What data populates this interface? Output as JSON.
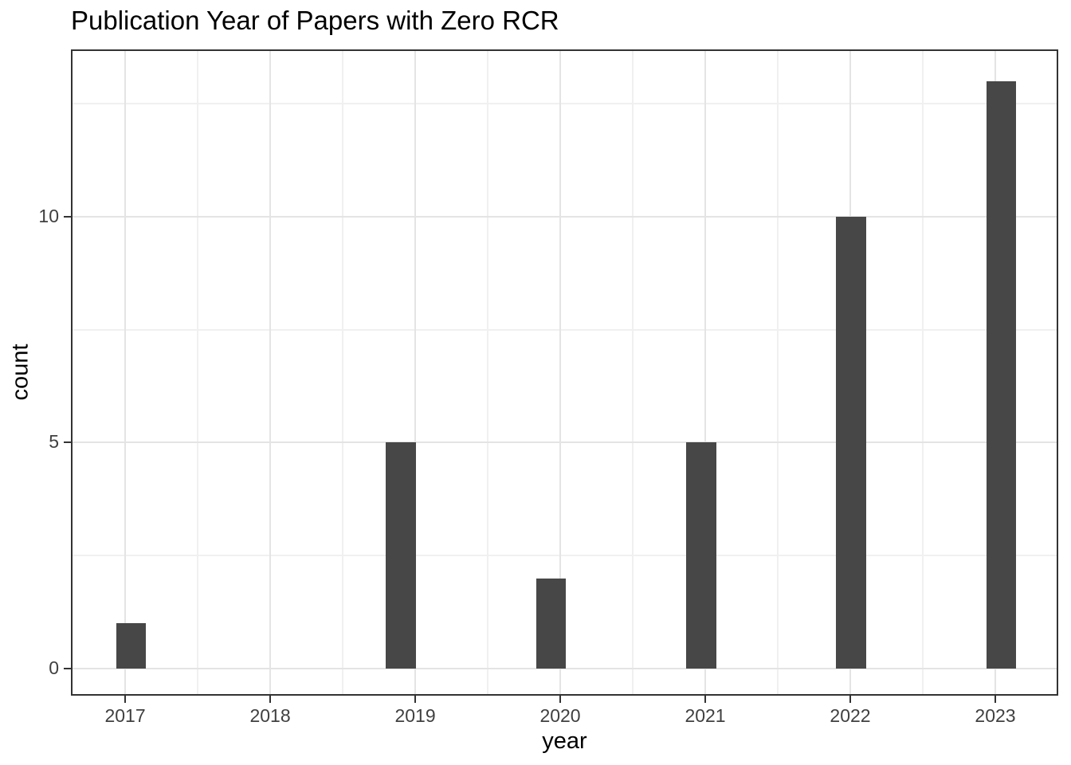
{
  "chart_data": {
    "type": "bar",
    "subtype": "histogram",
    "title": "Publication Year of Papers with Zero RCR",
    "xlabel": "year",
    "ylabel": "count",
    "categories": [
      2017,
      2018,
      2019,
      2020,
      2021,
      2022,
      2023
    ],
    "values": [
      1,
      0,
      5,
      2,
      5,
      10,
      13
    ],
    "bins": [
      {
        "year": 2017,
        "x0": 2016.937,
        "x1": 2017.144,
        "count": 1
      },
      {
        "year": 2019,
        "x0": 2018.799,
        "x1": 2019.006,
        "count": 5
      },
      {
        "year": 2020,
        "x0": 2019.834,
        "x1": 2020.04,
        "count": 2
      },
      {
        "year": 2021,
        "x0": 2020.868,
        "x1": 2021.075,
        "count": 5
      },
      {
        "year": 2022,
        "x0": 2021.902,
        "x1": 2022.109,
        "count": 10
      },
      {
        "year": 2023,
        "x0": 2022.937,
        "x1": 2023.144,
        "count": 13
      }
    ],
    "xlim": [
      2016.626,
      2023.434
    ],
    "ylim": [
      -0.6,
      13.7
    ],
    "x_ticks": [
      2017,
      2018,
      2019,
      2020,
      2021,
      2022,
      2023
    ],
    "y_ticks": [
      0,
      5,
      10
    ],
    "x_minor_ticks": [
      2017.5,
      2018.5,
      2019.5,
      2020.5,
      2021.5,
      2022.5
    ],
    "y_minor_ticks": [
      2.5,
      7.5,
      12.5
    ],
    "grid": true,
    "legend_position": "none",
    "colors": {
      "bar_fill": "#474747",
      "grid_major": "#E4E4E4",
      "grid_minor": "#F0F0F0",
      "panel_border": "#333333",
      "tick_mark": "#333333",
      "tick_label": "#404040",
      "title_text": "#000000",
      "background": "#FFFFFF"
    }
  }
}
